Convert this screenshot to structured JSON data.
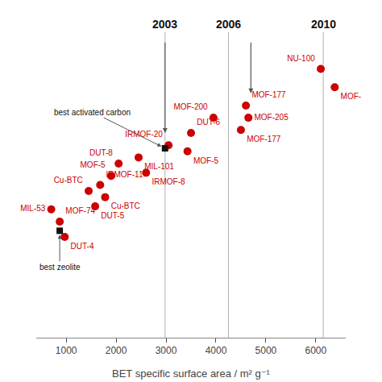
{
  "chart_data": {
    "type": "scatter",
    "xlabel": "BET specific surface area / m² g⁻¹",
    "xlim": [
      400,
      6600
    ],
    "xticks": [
      1000,
      2000,
      3000,
      4000,
      5000,
      6000
    ],
    "ylim": [
      0,
      1
    ],
    "tick_labels": "x",
    "grid": false,
    "color": "#cc0000",
    "marker": "circle",
    "x": [
      700,
      870,
      970,
      1450,
      1580,
      1680,
      1780,
      1900,
      2050,
      2450,
      2600,
      3050,
      3500,
      3430,
      3950,
      4600,
      4650,
      4500,
      6100,
      6380
    ],
    "values": [
      0.42,
      0.38,
      0.33,
      0.48,
      0.43,
      0.5,
      0.46,
      0.53,
      0.57,
      0.59,
      0.54,
      0.63,
      0.67,
      0.61,
      0.72,
      0.76,
      0.72,
      0.68,
      0.88,
      0.82
    ],
    "labels": [
      "MIL-53",
      "MOF-74",
      "DUT-4",
      "Cu-BTC",
      "DUT-5",
      "IRMOF-11",
      "Cu-BTC",
      "MOF-5",
      "DUT-8",
      "MIL-101",
      "IRMOF-8",
      "IRMOF-20",
      "DUT-6",
      "MOF-5",
      "MOF-200",
      "MOF-177",
      "MOF-205",
      "MOF-177",
      "NU-100",
      "MOF-"
    ],
    "reference_points": {
      "color": "#111111",
      "marker": "square",
      "x": [
        870,
        2980
      ],
      "values": [
        0.35,
        0.62
      ],
      "labels": [
        "best zeolite",
        "best activated carbon"
      ]
    },
    "year_lines": {
      "x": [
        2980,
        4250,
        6150
      ],
      "labels": [
        "2003",
        "2006",
        "2010"
      ]
    },
    "arrows": [
      {
        "x": 2980,
        "y_start": 0.97,
        "y_end": 0.67
      },
      {
        "x": 4700,
        "y_start": 0.97,
        "y_end": 0.8
      }
    ]
  }
}
